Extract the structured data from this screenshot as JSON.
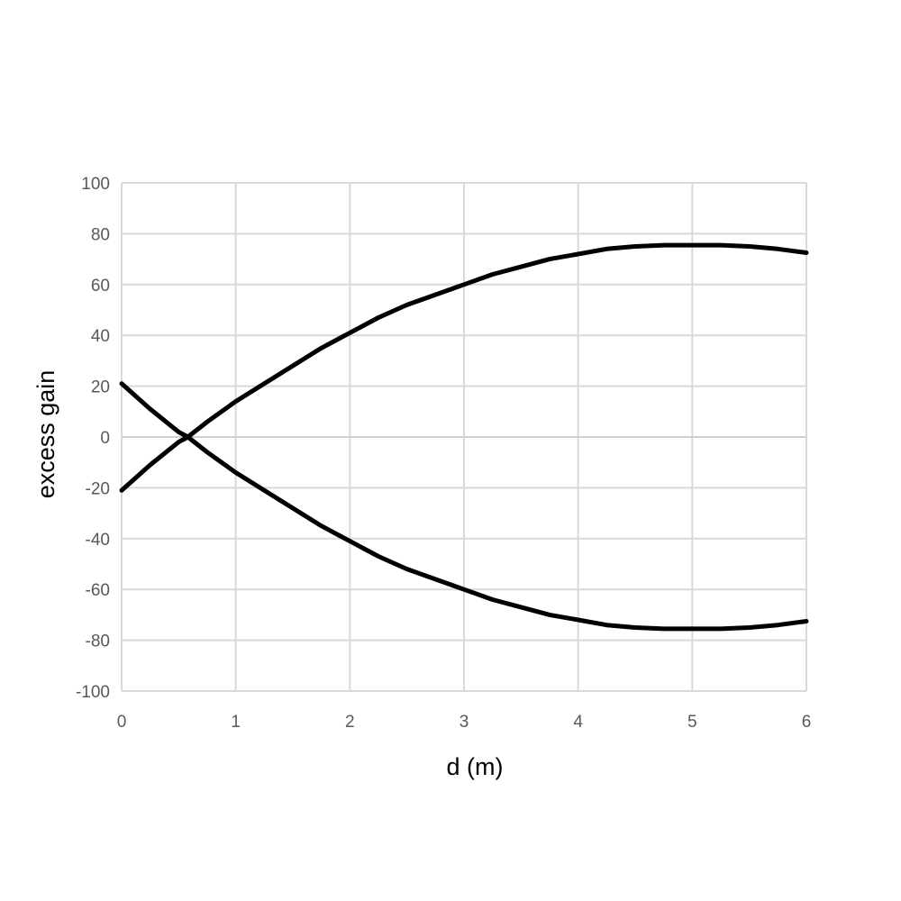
{
  "chart_data": {
    "type": "line",
    "title": "",
    "xlabel": "d (m)",
    "ylabel": "excess gain",
    "xlim": [
      0,
      6
    ],
    "ylim": [
      -100,
      100
    ],
    "x_ticks": [
      "0",
      "1",
      "2",
      "3",
      "4",
      "5",
      "6"
    ],
    "y_ticks": [
      "100",
      "80",
      "60",
      "40",
      "20",
      "0",
      "-20",
      "-40",
      "-60",
      "-80",
      "-100"
    ],
    "grid": true,
    "legend": "none",
    "line_color": "#000000",
    "x": [
      0,
      0.25,
      0.5,
      0.58,
      0.75,
      1,
      1.25,
      1.5,
      1.75,
      2,
      2.25,
      2.5,
      2.75,
      3,
      3.25,
      3.5,
      3.75,
      4,
      4.25,
      4.5,
      4.75,
      5,
      5.25,
      5.5,
      5.75,
      6
    ],
    "series": [
      {
        "values": [
          -21,
          -11,
          -2,
          0,
          6,
          14,
          21,
          28,
          35,
          41,
          47,
          52,
          56,
          60,
          64,
          67,
          70,
          72,
          74,
          75,
          75.5,
          75.5,
          75.5,
          75,
          74,
          72.5
        ]
      },
      {
        "values": [
          21,
          11,
          2,
          0,
          -6,
          -14,
          -21,
          -28,
          -35,
          -41,
          -47,
          -52,
          -56,
          -60,
          -64,
          -67,
          -70,
          -72,
          -74,
          -75,
          -75.5,
          -75.5,
          -75.5,
          -75,
          -74,
          -72.5
        ]
      }
    ]
  }
}
